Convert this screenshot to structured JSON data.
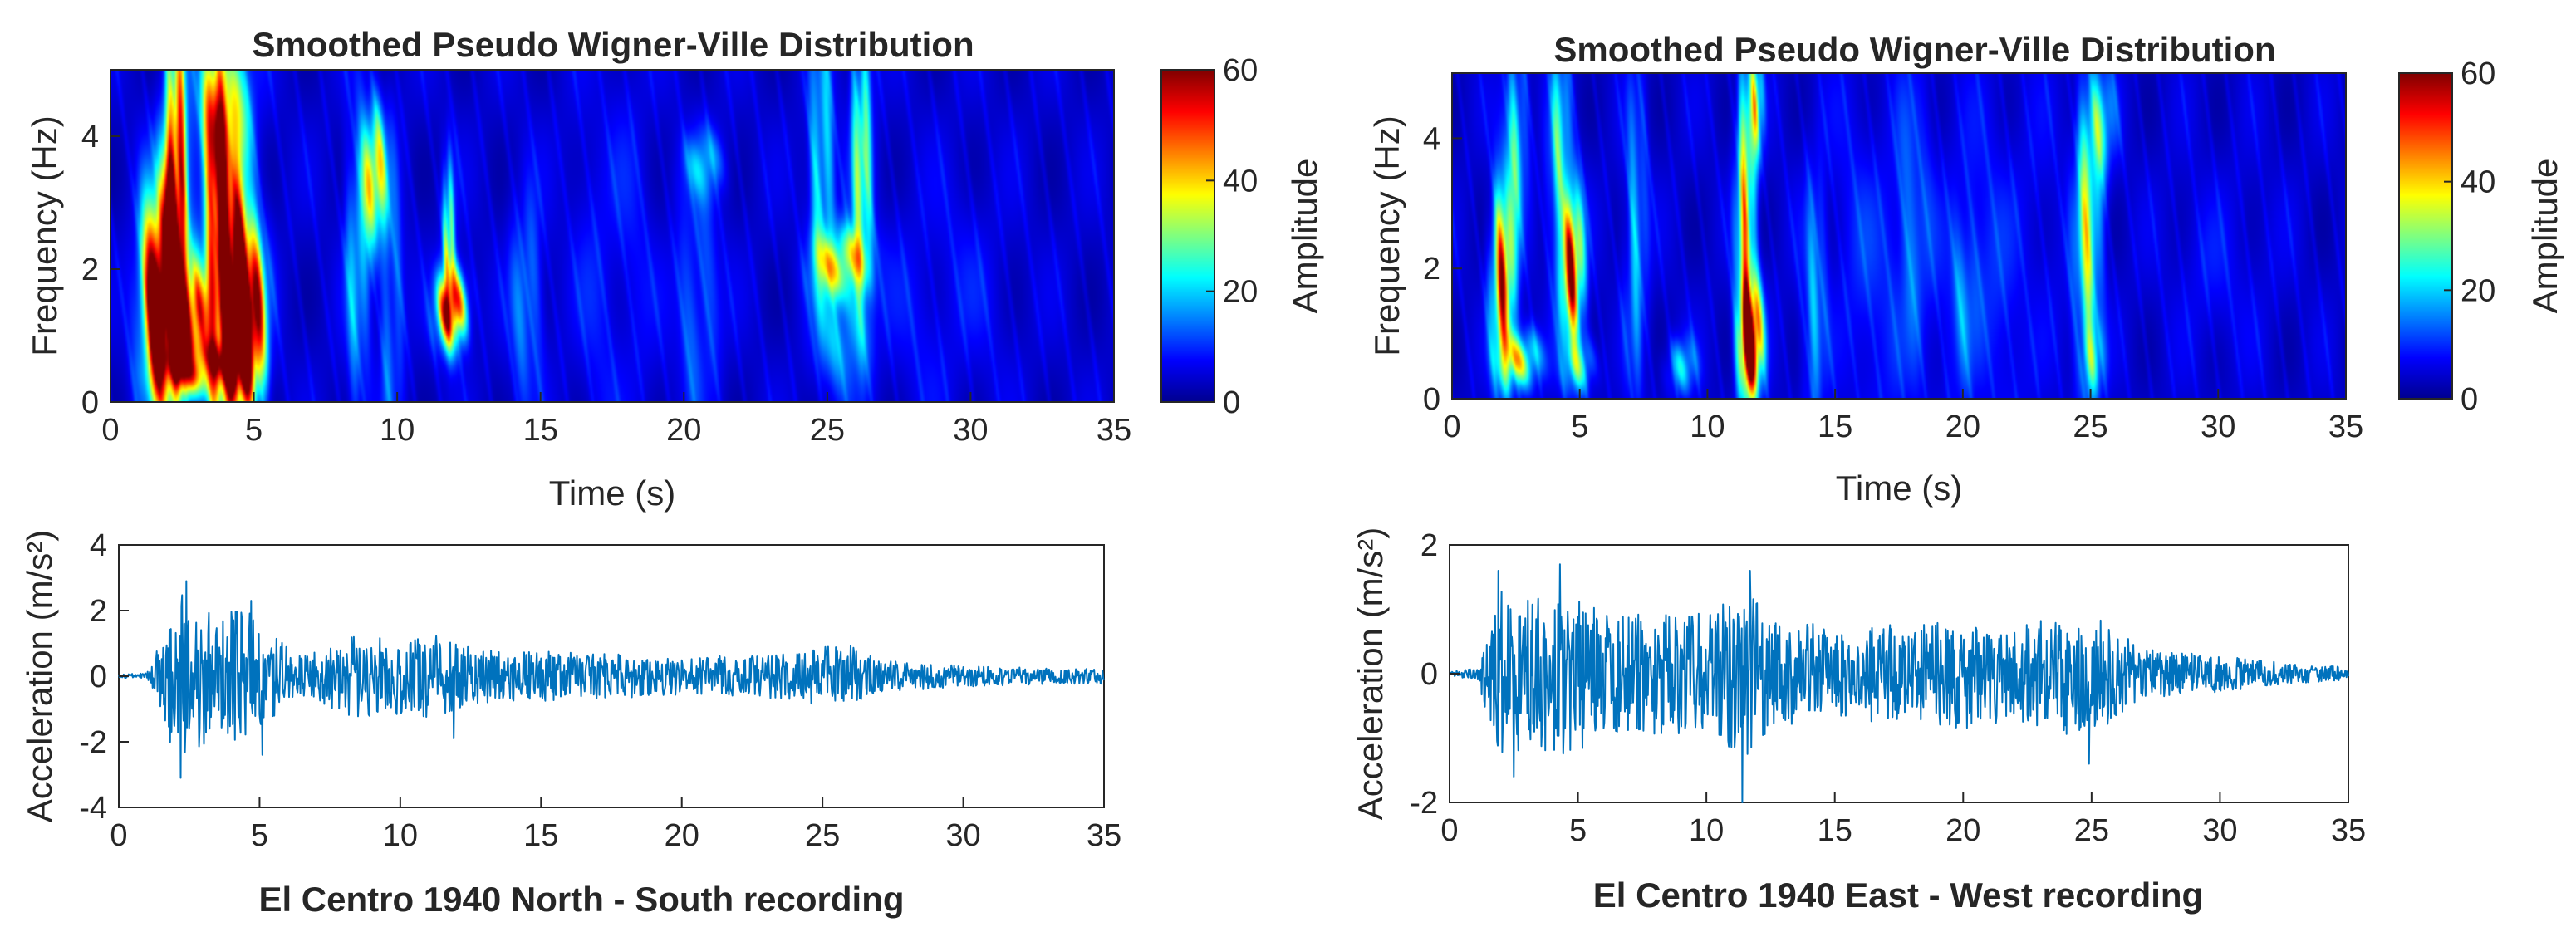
{
  "figure_colors": {
    "axis": "#262626",
    "trace": "#0072BD",
    "cmap": [
      "#00008F",
      "#0000FF",
      "#0080FF",
      "#00FFFF",
      "#80FF80",
      "#FFFF00",
      "#FF8000",
      "#FF0000",
      "#800000"
    ]
  },
  "chart_data": [
    {
      "id": "spwvd-ns",
      "type": "heatmap",
      "title": "Smoothed Pseudo Wigner-Ville Distribution",
      "xlabel": "Time (s)",
      "ylabel": "Frequency (Hz)",
      "xlim": [
        0,
        35
      ],
      "ylim": [
        0,
        5
      ],
      "xticks": [
        "0",
        "5",
        "10",
        "15",
        "20",
        "25",
        "30",
        "35"
      ],
      "yticks": [
        "0",
        "2",
        "4"
      ],
      "colorbar": {
        "label": "Amplitude",
        "range": [
          0,
          60
        ],
        "ticks": [
          "0",
          "20",
          "40",
          "60"
        ]
      },
      "blobs": [
        {
          "t": 1.8,
          "f": 1.6,
          "st": 0.45,
          "sf": 1.1,
          "a": 110
        },
        {
          "t": 2.3,
          "f": 3.2,
          "st": 0.25,
          "sf": 1.9,
          "a": 70
        },
        {
          "t": 2.9,
          "f": 1.2,
          "st": 0.35,
          "sf": 0.6,
          "a": 60
        },
        {
          "t": 3.7,
          "f": 2.6,
          "st": 0.3,
          "sf": 2.2,
          "a": 55
        },
        {
          "t": 4.3,
          "f": 1.6,
          "st": 0.35,
          "sf": 1.2,
          "a": 95
        },
        {
          "t": 4.9,
          "f": 1.2,
          "st": 0.35,
          "sf": 0.9,
          "a": 80
        },
        {
          "t": 4.0,
          "f": 4.3,
          "st": 0.6,
          "sf": 0.8,
          "a": 40
        },
        {
          "t": 3.2,
          "f": 0.5,
          "st": 0.9,
          "sf": 0.25,
          "a": 35
        },
        {
          "t": 9.2,
          "f": 3.4,
          "st": 0.3,
          "sf": 0.7,
          "a": 45
        },
        {
          "t": 8.6,
          "f": 2.0,
          "st": 0.3,
          "sf": 1.6,
          "a": 18
        },
        {
          "t": 9.8,
          "f": 1.5,
          "st": 0.3,
          "sf": 1.5,
          "a": 14
        },
        {
          "t": 11.9,
          "f": 1.4,
          "st": 0.35,
          "sf": 0.4,
          "a": 70
        },
        {
          "t": 11.8,
          "f": 2.4,
          "st": 0.15,
          "sf": 0.8,
          "a": 35
        },
        {
          "t": 14.5,
          "f": 1.5,
          "st": 0.4,
          "sf": 1.1,
          "a": 15
        },
        {
          "t": 20.7,
          "f": 3.6,
          "st": 0.5,
          "sf": 0.35,
          "a": 16
        },
        {
          "t": 20.5,
          "f": 1.5,
          "st": 0.5,
          "sf": 1.2,
          "a": 13
        },
        {
          "t": 25.5,
          "f": 2.1,
          "st": 0.6,
          "sf": 0.35,
          "a": 40
        },
        {
          "t": 24.8,
          "f": 3.5,
          "st": 0.3,
          "sf": 1.5,
          "a": 25
        },
        {
          "t": 26.2,
          "f": 3.6,
          "st": 0.25,
          "sf": 1.5,
          "a": 35
        },
        {
          "t": 25.6,
          "f": 1.0,
          "st": 0.6,
          "sf": 0.6,
          "a": 18
        },
        {
          "t": 17.5,
          "f": 2.0,
          "st": 1.0,
          "sf": 2.0,
          "a": 6
        },
        {
          "t": 29.0,
          "f": 1.5,
          "st": 1.5,
          "sf": 1.2,
          "a": 5
        }
      ]
    },
    {
      "id": "spwvd-ew",
      "type": "heatmap",
      "title": "Smoothed Pseudo Wigner-Ville Distribution",
      "xlabel": "Time (s)",
      "ylabel": "Frequency (Hz)",
      "xlim": [
        0,
        35
      ],
      "ylim": [
        0,
        5
      ],
      "xticks": [
        "0",
        "5",
        "10",
        "15",
        "20",
        "25",
        "30",
        "35"
      ],
      "yticks": [
        "0",
        "2",
        "4"
      ],
      "colorbar": {
        "label": "Amplitude",
        "range": [
          0,
          60
        ],
        "ticks": [
          "0",
          "20",
          "40",
          "60"
        ]
      },
      "blobs": [
        {
          "t": 2.0,
          "f": 1.8,
          "st": 0.3,
          "sf": 1.0,
          "a": 60
        },
        {
          "t": 2.7,
          "f": 0.6,
          "st": 0.5,
          "sf": 0.3,
          "a": 40
        },
        {
          "t": 4.7,
          "f": 2.0,
          "st": 0.3,
          "sf": 0.8,
          "a": 65
        },
        {
          "t": 4.2,
          "f": 3.8,
          "st": 0.3,
          "sf": 1.2,
          "a": 25
        },
        {
          "t": 5.0,
          "f": 0.5,
          "st": 0.4,
          "sf": 0.3,
          "a": 25
        },
        {
          "t": 2.5,
          "f": 4.0,
          "st": 0.3,
          "sf": 1.0,
          "a": 25
        },
        {
          "t": 7.2,
          "f": 2.5,
          "st": 0.3,
          "sf": 1.6,
          "a": 18
        },
        {
          "t": 9.0,
          "f": 0.5,
          "st": 0.4,
          "sf": 0.3,
          "a": 20
        },
        {
          "t": 11.7,
          "f": 0.9,
          "st": 0.3,
          "sf": 0.6,
          "a": 85
        },
        {
          "t": 11.5,
          "f": 2.8,
          "st": 0.25,
          "sf": 1.6,
          "a": 45
        },
        {
          "t": 11.9,
          "f": 4.5,
          "st": 0.2,
          "sf": 0.6,
          "a": 30
        },
        {
          "t": 14.2,
          "f": 1.5,
          "st": 0.3,
          "sf": 1.3,
          "a": 16
        },
        {
          "t": 18.0,
          "f": 2.5,
          "st": 0.5,
          "sf": 1.5,
          "a": 10
        },
        {
          "t": 20.0,
          "f": 1.5,
          "st": 0.4,
          "sf": 1.0,
          "a": 12
        },
        {
          "t": 24.9,
          "f": 2.5,
          "st": 0.35,
          "sf": 1.5,
          "a": 35
        },
        {
          "t": 25.4,
          "f": 4.2,
          "st": 0.4,
          "sf": 0.6,
          "a": 20
        },
        {
          "t": 25.1,
          "f": 0.6,
          "st": 0.3,
          "sf": 0.4,
          "a": 18
        },
        {
          "t": 16.5,
          "f": 2.0,
          "st": 1.5,
          "sf": 2.0,
          "a": 6
        },
        {
          "t": 21.5,
          "f": 2.0,
          "st": 1.5,
          "sf": 2.0,
          "a": 6
        },
        {
          "t": 30.0,
          "f": 2.0,
          "st": 1.5,
          "sf": 1.0,
          "a": 4
        }
      ]
    },
    {
      "id": "accel-ns",
      "type": "line",
      "title": "",
      "xlabel": "El Centro 1940 North - South recording",
      "ylabel": "Acceleration (m/s²)",
      "xlim": [
        0,
        35
      ],
      "ylim": [
        -4,
        4
      ],
      "xticks": [
        "0",
        "5",
        "10",
        "15",
        "20",
        "25",
        "30",
        "35"
      ],
      "yticks": [
        "-4",
        "-2",
        "0",
        "2",
        "4"
      ],
      "envelope": [
        [
          0,
          0.05
        ],
        [
          1.0,
          0.1
        ],
        [
          1.5,
          1.2
        ],
        [
          2.0,
          2.8
        ],
        [
          2.6,
          2.4
        ],
        [
          3.5,
          2.0
        ],
        [
          4.5,
          2.2
        ],
        [
          5.5,
          1.3
        ],
        [
          6.5,
          0.6
        ],
        [
          8.5,
          1.4
        ],
        [
          9.5,
          1.2
        ],
        [
          11.5,
          1.4
        ],
        [
          12.5,
          0.9
        ],
        [
          15.0,
          0.8
        ],
        [
          18.0,
          0.7
        ],
        [
          20.0,
          0.6
        ],
        [
          23.0,
          0.7
        ],
        [
          24.5,
          0.9
        ],
        [
          26.0,
          1.0
        ],
        [
          27.0,
          0.5
        ],
        [
          30.0,
          0.35
        ],
        [
          33.0,
          0.25
        ],
        [
          35.0,
          0.25
        ]
      ],
      "peaks": [
        [
          2.2,
          -3.1
        ],
        [
          2.4,
          2.9
        ],
        [
          4.7,
          2.3
        ],
        [
          5.1,
          -2.4
        ],
        [
          11.9,
          -1.9
        ]
      ]
    },
    {
      "id": "accel-ew",
      "type": "line",
      "title": "",
      "xlabel": "El Centro 1940 East - West recording",
      "ylabel": "Acceleration (m/s²)",
      "xlim": [
        0,
        35
      ],
      "ylim": [
        -2,
        2
      ],
      "xticks": [
        "0",
        "5",
        "10",
        "15",
        "20",
        "25",
        "30",
        "35"
      ],
      "yticks": [
        "-2",
        "0",
        "2"
      ],
      "envelope": [
        [
          0,
          0.03
        ],
        [
          1.0,
          0.1
        ],
        [
          1.5,
          0.7
        ],
        [
          2.0,
          1.4
        ],
        [
          3.0,
          1.3
        ],
        [
          4.5,
          1.4
        ],
        [
          6.0,
          1.0
        ],
        [
          8.0,
          1.0
        ],
        [
          10.0,
          1.0
        ],
        [
          11.5,
          1.4
        ],
        [
          12.5,
          0.9
        ],
        [
          15.0,
          0.8
        ],
        [
          18.0,
          0.8
        ],
        [
          20.0,
          0.9
        ],
        [
          22.0,
          0.8
        ],
        [
          24.0,
          1.0
        ],
        [
          25.5,
          0.9
        ],
        [
          27.0,
          0.4
        ],
        [
          30.0,
          0.3
        ],
        [
          33.0,
          0.15
        ],
        [
          35.0,
          0.12
        ]
      ],
      "peaks": [
        [
          1.9,
          1.6
        ],
        [
          4.3,
          1.7
        ],
        [
          11.4,
          -2.0
        ],
        [
          11.7,
          1.6
        ],
        [
          2.5,
          -1.6
        ],
        [
          24.9,
          -1.4
        ]
      ]
    }
  ]
}
